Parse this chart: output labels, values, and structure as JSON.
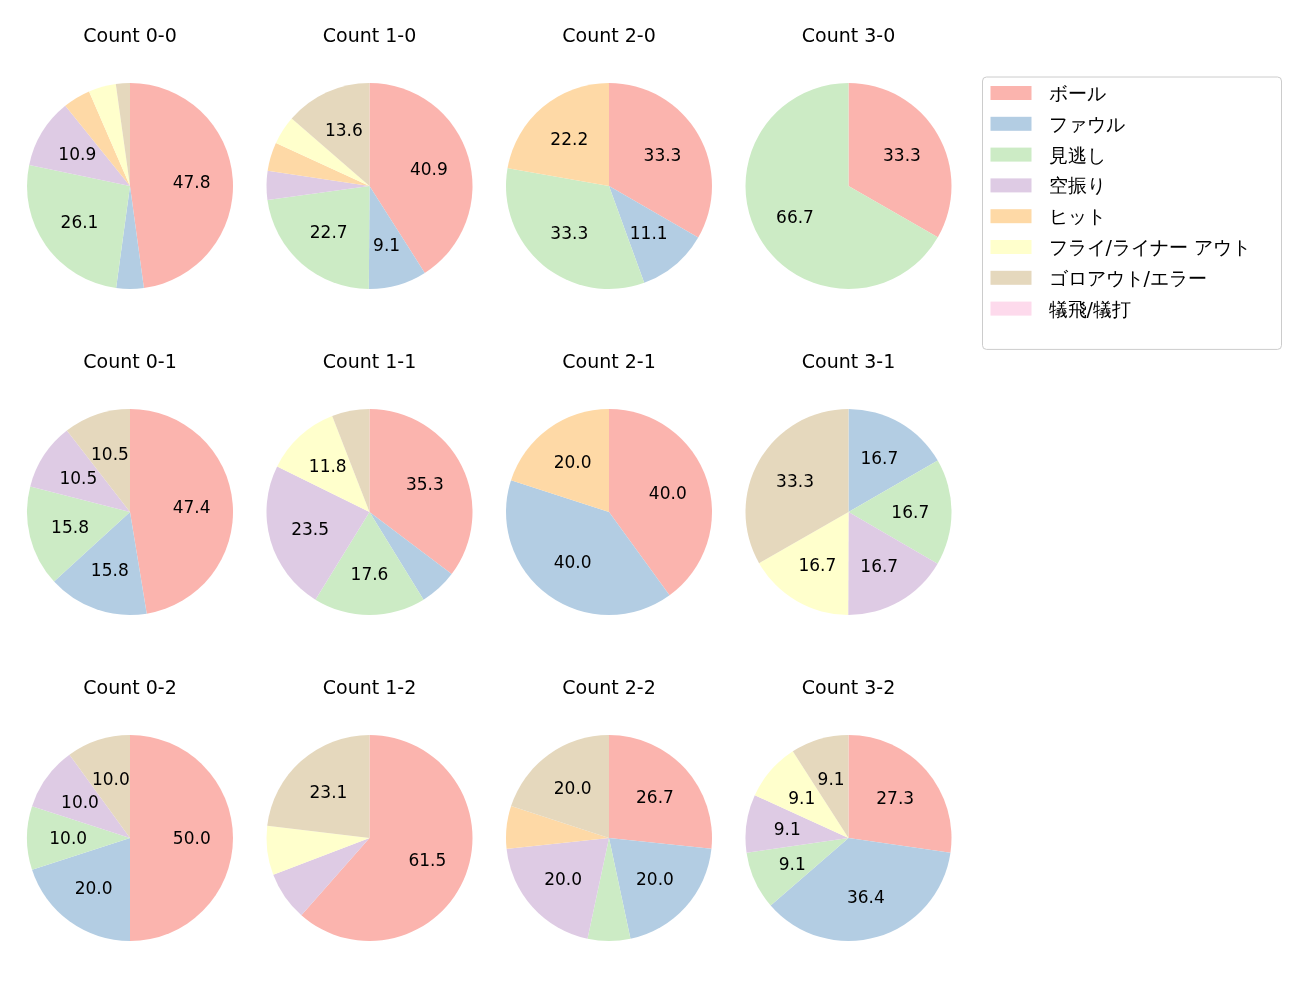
{
  "chart_data": [
    {
      "type": "pie",
      "title": "Count 0-0",
      "categories": [
        null,
        null,
        null,
        null,
        null,
        null,
        null
      ],
      "colors": [
        "#fbb4ae",
        "#b3cde3",
        "#ccebc5",
        "#decbe4",
        "#fed9a6",
        "#ffffcc",
        "#e5d8bd"
      ],
      "values": [
        47.8,
        4.3,
        26.1,
        10.9,
        4.3,
        4.3,
        2.2
      ],
      "value_labels": [
        "47.8",
        null,
        "26.1",
        "10.9",
        null,
        null,
        null
      ]
    },
    {
      "type": "pie",
      "title": "Count 1-0",
      "categories": [
        null,
        null,
        null,
        null,
        null,
        null,
        null
      ],
      "colors": [
        "#fbb4ae",
        "#b3cde3",
        "#ccebc5",
        "#decbe4",
        "#fed9a6",
        "#ffffcc",
        "#e5d8bd"
      ],
      "values": [
        40.9,
        9.1,
        22.7,
        4.5,
        4.5,
        4.5,
        13.6
      ],
      "value_labels": [
        "40.9",
        "9.1",
        "22.7",
        null,
        null,
        null,
        "13.6"
      ]
    },
    {
      "type": "pie",
      "title": "Count 2-0",
      "categories": [
        null,
        null,
        null,
        null
      ],
      "colors": [
        "#fbb4ae",
        "#b3cde3",
        "#ccebc5",
        "#fed9a6"
      ],
      "values": [
        33.3,
        11.1,
        33.3,
        22.2
      ],
      "data_labels": true
    },
    {
      "type": "pie",
      "title": "Count 3-0",
      "categories": [
        "ボール",
        "ファウル",
        "見逃し",
        "空振り",
        "ヒット",
        "フライ/ライナー アウト",
        "ゴロアウト/エラー",
        "犠飛/犠打"
      ],
      "colors": [
        "#fbb4ae",
        "#b3cde3",
        "#ccebc5",
        "#decbe4",
        "#fed9a6",
        "#ffffcc",
        "#e5d8bd",
        "#fddaec"
      ],
      "values": [
        33.3,
        0,
        66.7,
        0,
        0,
        0,
        0,
        0
      ],
      "value_labels": [
        "33.3",
        null,
        "66.7",
        null,
        null,
        null,
        null,
        null
      ],
      "legend": "right"
    },
    {
      "type": "pie",
      "title": "Count 0-1",
      "categories": [
        null,
        null,
        null,
        null,
        null
      ],
      "colors": [
        "#fbb4ae",
        "#b3cde3",
        "#ccebc5",
        "#decbe4",
        "#e5d8bd"
      ],
      "values": [
        47.4,
        15.8,
        15.8,
        10.5,
        10.5
      ],
      "data_labels": true
    },
    {
      "type": "pie",
      "title": "Count 1-1",
      "categories": [
        null,
        null,
        null,
        null,
        null,
        null
      ],
      "colors": [
        "#fbb4ae",
        "#b3cde3",
        "#ccebc5",
        "#decbe4",
        "#ffffcc",
        "#e5d8bd"
      ],
      "values": [
        35.3,
        5.9,
        17.6,
        23.5,
        11.8,
        5.9
      ],
      "value_labels": [
        "35.3",
        null,
        "17.6",
        "23.5",
        "11.8",
        null
      ]
    },
    {
      "type": "pie",
      "title": "Count 2-1",
      "categories": [
        null,
        null,
        null
      ],
      "colors": [
        "#fbb4ae",
        "#b3cde3",
        "#fed9a6"
      ],
      "values": [
        40.0,
        40.0,
        20.0
      ],
      "value_labels": [
        "40.0",
        "40.0",
        "20.0"
      ]
    },
    {
      "type": "pie",
      "title": "Count 3-1",
      "categories": [
        null,
        null,
        null,
        null,
        null
      ],
      "colors": [
        "#b3cde3",
        "#ccebc5",
        "#decbe4",
        "#ffffcc",
        "#e5d8bd"
      ],
      "values": [
        16.7,
        16.7,
        16.7,
        16.7,
        33.3
      ],
      "data_labels": true
    },
    {
      "type": "pie",
      "title": "Count 0-2",
      "categories": [
        null,
        null,
        null,
        null,
        null
      ],
      "colors": [
        "#fbb4ae",
        "#b3cde3",
        "#ccebc5",
        "#decbe4",
        "#e5d8bd"
      ],
      "values": [
        50.0,
        20.0,
        10.0,
        10.0,
        10.0
      ],
      "value_labels": [
        "50.0",
        "20.0",
        "10.0",
        "10.0",
        "10.0"
      ]
    },
    {
      "type": "pie",
      "title": "Count 1-2",
      "categories": [
        null,
        null,
        null,
        null
      ],
      "colors": [
        "#fbb4ae",
        "#decbe4",
        "#ffffcc",
        "#e5d8bd"
      ],
      "values": [
        61.5,
        7.7,
        7.7,
        23.1
      ],
      "value_labels": [
        "61.5",
        null,
        null,
        "23.1"
      ]
    },
    {
      "type": "pie",
      "title": "Count 2-2",
      "categories": [
        null,
        null,
        null,
        null,
        null,
        null
      ],
      "colors": [
        "#fbb4ae",
        "#b3cde3",
        "#ccebc5",
        "#decbe4",
        "#fed9a6",
        "#e5d8bd"
      ],
      "values": [
        26.7,
        20.0,
        6.7,
        20.0,
        6.7,
        20.0
      ],
      "value_labels": [
        "26.7",
        "20.0",
        null,
        "20.0",
        null,
        "20.0"
      ]
    },
    {
      "type": "pie",
      "title": "Count 3-2",
      "categories": [
        null,
        null,
        null,
        null,
        null,
        null
      ],
      "colors": [
        "#fbb4ae",
        "#b3cde3",
        "#ccebc5",
        "#decbe4",
        "#ffffcc",
        "#e5d8bd"
      ],
      "values": [
        27.3,
        36.4,
        9.1,
        9.1,
        9.1,
        9.1
      ],
      "data_labels": true
    }
  ]
}
